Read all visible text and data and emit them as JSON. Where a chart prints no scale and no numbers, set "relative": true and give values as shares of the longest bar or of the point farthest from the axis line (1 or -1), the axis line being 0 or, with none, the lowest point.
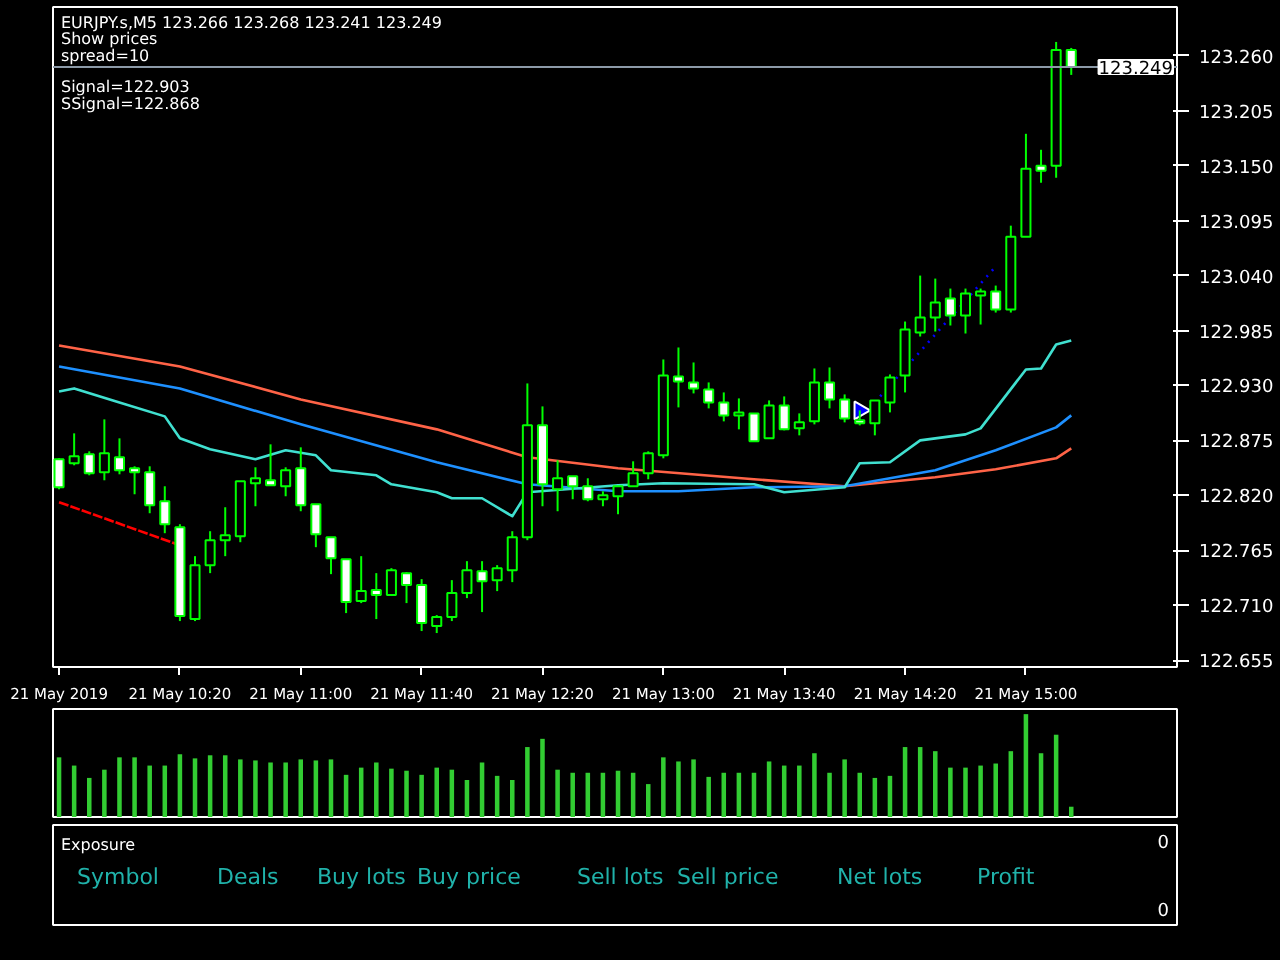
{
  "chart_data": [
    {
      "type": "candlestick",
      "title": "EURJPY.s,M5  123.266 123.268 123.241 123.249",
      "annotations": [
        "Show prices",
        "spread=10",
        "Signal=122.903",
        "SSignal=122.868"
      ],
      "x": [
        "2019-05-21T09:40",
        "2019-05-21T09:45",
        "2019-05-21T09:50",
        "2019-05-21T09:55",
        "2019-05-21T10:00",
        "2019-05-21T10:05",
        "2019-05-21T10:10",
        "2019-05-21T10:15",
        "2019-05-21T10:20",
        "2019-05-21T10:25",
        "2019-05-21T10:30",
        "2019-05-21T10:35",
        "2019-05-21T10:40",
        "2019-05-21T10:45",
        "2019-05-21T10:50",
        "2019-05-21T10:55",
        "2019-05-21T11:00",
        "2019-05-21T11:05",
        "2019-05-21T11:10",
        "2019-05-21T11:15",
        "2019-05-21T11:20",
        "2019-05-21T11:25",
        "2019-05-21T11:30",
        "2019-05-21T11:35",
        "2019-05-21T11:40",
        "2019-05-21T11:45",
        "2019-05-21T11:50",
        "2019-05-21T11:55",
        "2019-05-21T12:00",
        "2019-05-21T12:05",
        "2019-05-21T12:10",
        "2019-05-21T12:15",
        "2019-05-21T12:20",
        "2019-05-21T12:25",
        "2019-05-21T12:30",
        "2019-05-21T12:35",
        "2019-05-21T12:40",
        "2019-05-21T12:45",
        "2019-05-21T12:50",
        "2019-05-21T12:55",
        "2019-05-21T13:00",
        "2019-05-21T13:05",
        "2019-05-21T13:10",
        "2019-05-21T13:15",
        "2019-05-21T13:20",
        "2019-05-21T13:25",
        "2019-05-21T13:30",
        "2019-05-21T13:35",
        "2019-05-21T13:40",
        "2019-05-21T13:45",
        "2019-05-21T13:50",
        "2019-05-21T13:55",
        "2019-05-21T14:00",
        "2019-05-21T14:05",
        "2019-05-21T14:10",
        "2019-05-21T14:15",
        "2019-05-21T14:20",
        "2019-05-21T14:25",
        "2019-05-21T14:30",
        "2019-05-21T14:35",
        "2019-05-21T14:40",
        "2019-05-21T14:45",
        "2019-05-21T14:50",
        "2019-05-21T14:55",
        "2019-05-21T15:00",
        "2019-05-21T15:05",
        "2019-05-21T15:10",
        "2019-05-21T15:15"
      ],
      "ohlc": [
        [
          122.856,
          122.857,
          122.826,
          122.828
        ],
        [
          122.852,
          122.882,
          122.85,
          122.859
        ],
        [
          122.861,
          122.864,
          122.84,
          122.842
        ],
        [
          122.843,
          122.896,
          122.835,
          122.862
        ],
        [
          122.858,
          122.877,
          122.841,
          122.845
        ],
        [
          122.847,
          122.849,
          122.821,
          122.843
        ],
        [
          122.843,
          122.849,
          122.802,
          122.81
        ],
        [
          122.814,
          122.829,
          122.782,
          122.791
        ],
        [
          122.788,
          122.791,
          122.694,
          122.699
        ],
        [
          122.696,
          122.759,
          122.694,
          122.75
        ],
        [
          122.75,
          122.784,
          122.742,
          122.775
        ],
        [
          122.775,
          122.808,
          122.759,
          122.78
        ],
        [
          122.779,
          122.834,
          122.773,
          122.834
        ],
        [
          122.832,
          122.848,
          122.809,
          122.837
        ],
        [
          122.835,
          122.871,
          122.83,
          122.83
        ],
        [
          122.829,
          122.848,
          122.819,
          122.845
        ],
        [
          122.847,
          122.868,
          122.804,
          122.81
        ],
        [
          122.811,
          122.811,
          122.768,
          122.781
        ],
        [
          122.778,
          122.778,
          122.741,
          122.757
        ],
        [
          122.756,
          122.756,
          122.702,
          122.713
        ],
        [
          122.714,
          122.759,
          122.712,
          122.724
        ],
        [
          122.725,
          122.742,
          122.696,
          122.72
        ],
        [
          122.72,
          122.747,
          122.72,
          122.745
        ],
        [
          122.742,
          122.743,
          122.712,
          122.73
        ],
        [
          122.73,
          122.736,
          122.684,
          122.692
        ],
        [
          122.689,
          122.7,
          122.682,
          122.698
        ],
        [
          122.698,
          122.735,
          122.694,
          122.722
        ],
        [
          122.722,
          122.754,
          122.717,
          122.745
        ],
        [
          122.744,
          122.754,
          122.703,
          122.734
        ],
        [
          122.735,
          122.75,
          122.724,
          122.747
        ],
        [
          122.745,
          122.784,
          122.733,
          122.778
        ],
        [
          122.778,
          122.932,
          122.775,
          122.89
        ],
        [
          122.89,
          122.909,
          122.809,
          122.831
        ],
        [
          122.826,
          122.855,
          122.804,
          122.837
        ],
        [
          122.839,
          122.839,
          122.816,
          122.829
        ],
        [
          122.829,
          122.837,
          122.814,
          122.816
        ],
        [
          122.816,
          122.824,
          122.809,
          122.82
        ],
        [
          122.819,
          122.829,
          122.801,
          122.829
        ],
        [
          122.829,
          122.854,
          122.829,
          122.842
        ],
        [
          122.842,
          122.864,
          122.836,
          122.862
        ],
        [
          122.86,
          122.956,
          122.857,
          122.94
        ],
        [
          122.939,
          122.968,
          122.908,
          122.934
        ],
        [
          122.933,
          122.953,
          122.922,
          122.927
        ],
        [
          122.926,
          122.933,
          122.907,
          122.913
        ],
        [
          122.913,
          122.923,
          122.894,
          122.9
        ],
        [
          122.9,
          122.917,
          122.886,
          122.903
        ],
        [
          122.902,
          122.902,
          122.874,
          122.874
        ],
        [
          122.877,
          122.915,
          122.877,
          122.91
        ],
        [
          122.91,
          122.919,
          122.885,
          122.886
        ],
        [
          122.887,
          122.902,
          122.88,
          122.893
        ],
        [
          122.894,
          122.947,
          122.891,
          122.933
        ],
        [
          122.933,
          122.948,
          122.907,
          122.916
        ],
        [
          122.916,
          122.921,
          122.893,
          122.897
        ],
        [
          122.895,
          122.905,
          122.89,
          122.892
        ],
        [
          122.892,
          122.915,
          122.88,
          122.915
        ],
        [
          122.913,
          122.941,
          122.903,
          122.938
        ],
        [
          122.94,
          122.994,
          122.923,
          122.986
        ],
        [
          122.983,
          123.04,
          122.979,
          122.998
        ],
        [
          122.998,
          123.037,
          122.984,
          123.013
        ],
        [
          123.017,
          123.027,
          122.99,
          123.0
        ],
        [
          123.0,
          123.027,
          122.982,
          123.022
        ],
        [
          123.02,
          123.027,
          122.991,
          123.024
        ],
        [
          123.024,
          123.03,
          123.003,
          123.006
        ],
        [
          123.006,
          123.09,
          123.003,
          123.079
        ],
        [
          123.079,
          123.182,
          123.079,
          123.147
        ],
        [
          123.15,
          123.166,
          123.133,
          123.145
        ],
        [
          123.15,
          123.274,
          123.138,
          123.266
        ],
        [
          123.266,
          123.268,
          123.241,
          123.249
        ]
      ],
      "color": "#00ff00",
      "series": [
        {
          "type": "line",
          "color": "#ff6347",
          "line_style": "solid",
          "x": [
            "2019-05-21T09:40",
            "2019-05-21T10:20",
            "2019-05-21T11:00",
            "2019-05-21T11:45",
            "2019-05-21T12:15",
            "2019-05-21T12:45",
            "2019-05-21T13:30",
            "2019-05-21T14:00",
            "2019-05-21T14:30",
            "2019-05-21T14:50",
            "2019-05-21T15:10",
            "2019-05-21T15:15"
          ],
          "values": [
            122.97,
            122.949,
            122.916,
            122.886,
            122.858,
            122.847,
            122.836,
            122.829,
            122.838,
            122.846,
            122.857,
            122.867
          ]
        },
        {
          "type": "line",
          "color": "#1e90ff",
          "line_style": "solid",
          "x": [
            "2019-05-21T09:40",
            "2019-05-21T10:20",
            "2019-05-21T11:00",
            "2019-05-21T11:45",
            "2019-05-21T12:15",
            "2019-05-21T12:45",
            "2019-05-21T13:05",
            "2019-05-21T13:30",
            "2019-05-21T14:00",
            "2019-05-21T14:30",
            "2019-05-21T14:50",
            "2019-05-21T15:10",
            "2019-05-21T15:15"
          ],
          "values": [
            122.949,
            122.927,
            122.891,
            122.853,
            122.831,
            122.824,
            122.824,
            122.828,
            122.829,
            122.845,
            122.865,
            122.888,
            122.9
          ]
        },
        {
          "type": "line",
          "color": "#40e0d0",
          "line_style": "solid",
          "x": [
            "2019-05-21T09:40",
            "2019-05-21T09:45",
            "2019-05-21T10:00",
            "2019-05-21T10:15",
            "2019-05-21T10:20",
            "2019-05-21T10:30",
            "2019-05-21T10:45",
            "2019-05-21T10:55",
            "2019-05-21T11:05",
            "2019-05-21T11:10",
            "2019-05-21T11:25",
            "2019-05-21T11:30",
            "2019-05-21T11:45",
            "2019-05-21T11:50",
            "2019-05-21T12:00",
            "2019-05-21T12:10",
            "2019-05-21T12:15",
            "2019-05-21T12:45",
            "2019-05-21T13:00",
            "2019-05-21T13:30",
            "2019-05-21T13:40",
            "2019-05-21T14:00",
            "2019-05-21T14:05",
            "2019-05-21T14:15",
            "2019-05-21T14:25",
            "2019-05-21T14:40",
            "2019-05-21T14:45",
            "2019-05-21T15:00",
            "2019-05-21T15:05",
            "2019-05-21T15:10",
            "2019-05-21T15:15"
          ],
          "values": [
            122.924,
            122.927,
            122.913,
            122.899,
            122.877,
            122.866,
            122.856,
            122.865,
            122.86,
            122.845,
            122.84,
            122.831,
            122.823,
            122.817,
            122.817,
            122.799,
            122.823,
            122.83,
            122.832,
            122.831,
            122.823,
            122.828,
            122.852,
            122.853,
            122.875,
            122.881,
            122.887,
            122.946,
            122.947,
            122.971,
            122.975
          ]
        },
        {
          "type": "line",
          "color": "#ff0000",
          "line_style": "dashed",
          "x": [
            "2019-05-21T09:40",
            "2019-05-21T10:20"
          ],
          "values": [
            122.813,
            122.77
          ]
        },
        {
          "type": "line",
          "color": "#0000ff",
          "line_style": "dotted",
          "x": [
            "2019-05-21T14:10",
            "2019-05-21T14:50"
          ],
          "values": [
            122.913,
            123.049
          ]
        },
        {
          "type": "scatter",
          "color": "#0000ff",
          "marker": "triangle",
          "x": [
            "2019-05-21T14:05"
          ],
          "values": [
            122.905
          ]
        }
      ],
      "xlim": [
        "2019-05-21T09:38",
        "2019-05-21T15:50"
      ],
      "xticks": [
        {
          "value": "2019-05-21T09:40",
          "label": "21 May 2019"
        },
        {
          "value": "2019-05-21T10:20",
          "label": "21 May 10:20"
        },
        {
          "value": "2019-05-21T11:00",
          "label": "21 May 11:00"
        },
        {
          "value": "2019-05-21T11:40",
          "label": "21 May 11:40"
        },
        {
          "value": "2019-05-21T12:20",
          "label": "21 May 12:20"
        },
        {
          "value": "2019-05-21T13:00",
          "label": "21 May 13:00"
        },
        {
          "value": "2019-05-21T13:40",
          "label": "21 May 13:40"
        },
        {
          "value": "2019-05-21T14:20",
          "label": "21 May 14:20"
        },
        {
          "value": "2019-05-21T15:00",
          "label": "21 May 15:00"
        }
      ],
      "ylim": [
        122.648,
        123.309
      ],
      "yticks": [
        {
          "value": 122.655,
          "label": "122.655"
        },
        {
          "value": 122.71,
          "label": "122.710"
        },
        {
          "value": 122.765,
          "label": "122.765"
        },
        {
          "value": 122.82,
          "label": "122.820"
        },
        {
          "value": 122.875,
          "label": "122.875"
        },
        {
          "value": 122.93,
          "label": "122.930"
        },
        {
          "value": 122.985,
          "label": "122.985"
        },
        {
          "value": 123.04,
          "label": "123.040"
        },
        {
          "value": 123.095,
          "label": "123.095"
        },
        {
          "value": 123.15,
          "label": "123.150"
        },
        {
          "value": 123.205,
          "label": "123.205"
        },
        {
          "value": 123.26,
          "label": "123.260"
        }
      ],
      "ref_lines": [
        {
          "axis": "y",
          "value": 123.249,
          "label": "123.249",
          "color": "#8c9aa8"
        }
      ],
      "grid": false
    },
    {
      "type": "bar",
      "relative": true,
      "color": "#32cd32",
      "categories": [
        null,
        null,
        null,
        null,
        null,
        null,
        null,
        null,
        null,
        null,
        null,
        null,
        null,
        null,
        null,
        null,
        null,
        null,
        null,
        null,
        null,
        null,
        null,
        null,
        null,
        null,
        null,
        null,
        null,
        null,
        null,
        null,
        null,
        null,
        null,
        null,
        null,
        null,
        null,
        null,
        null,
        null,
        null,
        null,
        null,
        null,
        null,
        null,
        null,
        null,
        null,
        null,
        null,
        null,
        null,
        null,
        null,
        null,
        null,
        null,
        null,
        null,
        null,
        null,
        null,
        null,
        null,
        null
      ],
      "values": [
        0.58,
        0.5,
        0.38,
        0.46,
        0.58,
        0.58,
        0.5,
        0.5,
        0.61,
        0.57,
        0.6,
        0.6,
        0.56,
        0.55,
        0.53,
        0.53,
        0.56,
        0.55,
        0.56,
        0.41,
        0.48,
        0.53,
        0.47,
        0.45,
        0.41,
        0.48,
        0.46,
        0.36,
        0.53,
        0.4,
        0.36,
        0.68,
        0.76,
        0.46,
        0.43,
        0.43,
        0.43,
        0.45,
        0.43,
        0.32,
        0.58,
        0.54,
        0.56,
        0.39,
        0.43,
        0.43,
        0.43,
        0.54,
        0.5,
        0.5,
        0.62,
        0.43,
        0.56,
        0.43,
        0.38,
        0.4,
        0.68,
        0.68,
        0.64,
        0.48,
        0.48,
        0.5,
        0.52,
        0.64,
        1,
        0.62,
        0.8,
        0.1
      ]
    },
    {
      "type": "other",
      "title": "Exposure",
      "annotations": [
        "Symbol",
        "Deals",
        "Buy lots",
        "Buy price",
        "Sell lots",
        "Sell price",
        "Net lots",
        "Profit",
        "0",
        "0"
      ]
    }
  ]
}
